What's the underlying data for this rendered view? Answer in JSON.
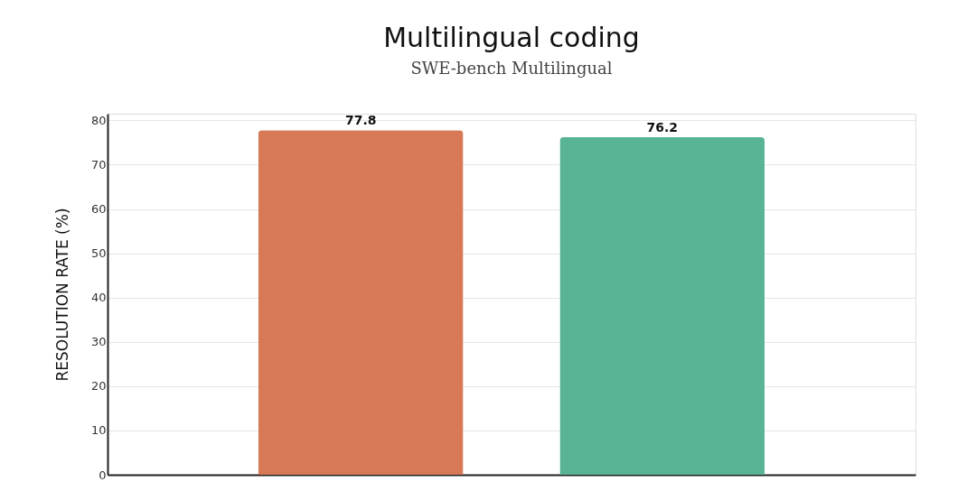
{
  "chart_data": {
    "type": "bar",
    "title": "Multilingual coding",
    "subtitle": "SWE-bench Multilingual",
    "ylabel": "RESOLUTION RATE (%)",
    "categories": [
      null,
      null
    ],
    "values": [
      77.8,
      76.2
    ],
    "colors": [
      "#d77857",
      "#59b395"
    ],
    "ylim": [
      0,
      81.5
    ],
    "yticks": [
      0,
      10,
      20,
      30,
      40,
      50,
      60,
      70,
      80
    ],
    "grid": "y",
    "data_labels": true
  }
}
